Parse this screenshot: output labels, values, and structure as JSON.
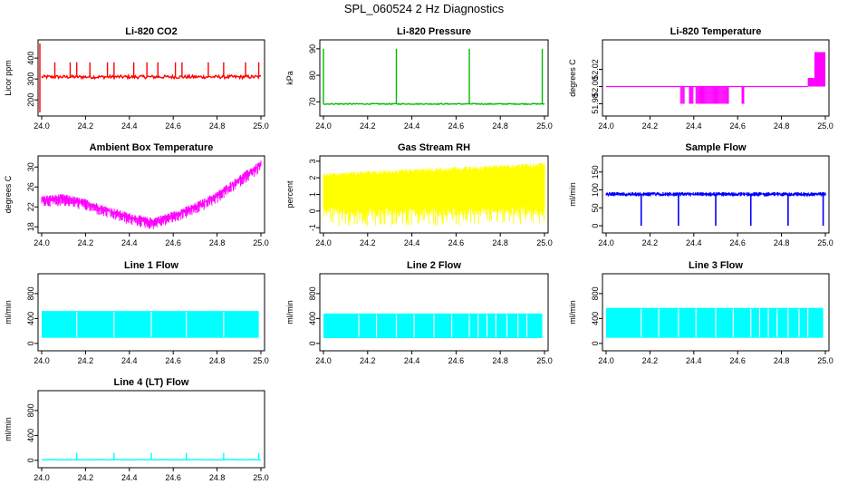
{
  "page": {
    "title": "SPL_060524  2 Hz Diagnostics"
  },
  "chart_data": [
    {
      "id": "co2",
      "type": "line",
      "title": "Li-820 CO2",
      "ylabel": "Licor ppm",
      "color": "#ff0000",
      "xlim": [
        24.0,
        25.0
      ],
      "ylim": [
        140,
        470
      ],
      "xticks": [
        24.0,
        24.2,
        24.4,
        24.6,
        24.8,
        25.0
      ],
      "xtick_labels": [
        "24.0",
        "24.2",
        "24.4",
        "24.6",
        "24.8",
        "25.0"
      ],
      "yticks": [
        200,
        300,
        400
      ],
      "ytick_labels": [
        "200",
        "300",
        "400"
      ],
      "pattern": "spikes",
      "baseline": 310,
      "noise": 8,
      "spike_value": 380,
      "spike_x": [
        24.06,
        24.13,
        24.16,
        24.22,
        24.3,
        24.33,
        24.42,
        24.48,
        24.53,
        24.61,
        24.64,
        24.76,
        24.83,
        24.93,
        24.99
      ]
    },
    {
      "id": "pressure",
      "type": "line",
      "title": "Li-820 Pressure",
      "ylabel": "kPa",
      "color": "#00bb00",
      "xlim": [
        24.0,
        25.0
      ],
      "ylim": [
        66,
        92
      ],
      "xticks": [
        24.0,
        24.2,
        24.4,
        24.6,
        24.8,
        25.0
      ],
      "xtick_labels": [
        "24.0",
        "24.2",
        "24.4",
        "24.6",
        "24.8",
        "25.0"
      ],
      "yticks": [
        70,
        80,
        90
      ],
      "ytick_labels": [
        "70",
        "80",
        "90"
      ],
      "pattern": "spikes",
      "baseline": 69.2,
      "noise": 0.2,
      "spike_value": 90,
      "spike_x": [
        24.0,
        24.33,
        24.66,
        24.99
      ]
    },
    {
      "id": "temp",
      "type": "line",
      "title": "Li-820 Temperature",
      "ylabel": "degrees C",
      "color": "#ff00ff",
      "xlim": [
        24.0,
        25.0
      ],
      "ylim": [
        51.97,
        52.05
      ],
      "xticks": [
        24.0,
        24.2,
        24.4,
        24.6,
        24.8,
        25.0
      ],
      "xtick_labels": [
        "24.0",
        "24.2",
        "24.4",
        "24.6",
        "24.8",
        "25.0"
      ],
      "yticks": [
        51.98,
        52.0,
        52.02
      ],
      "ytick_labels": [
        "51.98",
        "52.00",
        "52.02"
      ],
      "pattern": "steps",
      "baseline": 52.0,
      "low_value": 51.98,
      "blocks": [
        [
          24.34,
          24.36
        ],
        [
          24.38,
          24.4
        ],
        [
          24.41,
          24.56
        ],
        [
          24.62,
          24.63
        ]
      ],
      "high_blocks": [
        [
          24.92,
          24.95,
          52.01
        ],
        [
          24.95,
          25.0,
          52.04
        ]
      ]
    },
    {
      "id": "ambient",
      "type": "line",
      "title": "Ambient Box Temperature",
      "ylabel": "degrees C",
      "color": "#ff00ff",
      "xlim": [
        24.0,
        25.0
      ],
      "ylim": [
        17.5,
        31.5
      ],
      "xticks": [
        24.0,
        24.2,
        24.4,
        24.6,
        24.8,
        25.0
      ],
      "xtick_labels": [
        "24.0",
        "24.2",
        "24.4",
        "24.6",
        "24.8",
        "25.0"
      ],
      "yticks": [
        18,
        22,
        26,
        30
      ],
      "ytick_labels": [
        "18",
        "22",
        "26",
        "30"
      ],
      "pattern": "curve",
      "curve_x": [
        24.0,
        24.1,
        24.2,
        24.3,
        24.4,
        24.5,
        24.6,
        24.7,
        24.8,
        24.9,
        25.0
      ],
      "curve_y": [
        23.5,
        23.8,
        22.8,
        21.3,
        20.0,
        19.0,
        20.3,
        22.0,
        24.3,
        27.5,
        30.5
      ],
      "band": 1.6
    },
    {
      "id": "rh",
      "type": "area",
      "title": "Gas Stream RH",
      "ylabel": "percent",
      "color": "#ffff00",
      "xlim": [
        24.0,
        25.0
      ],
      "ylim": [
        -1.1,
        3.1
      ],
      "xticks": [
        24.0,
        24.2,
        24.4,
        24.6,
        24.8,
        25.0
      ],
      "xtick_labels": [
        "24.0",
        "24.2",
        "24.4",
        "24.6",
        "24.8",
        "25.0"
      ],
      "yticks": [
        -1,
        0,
        1,
        2,
        3
      ],
      "ytick_labels": [
        "-1",
        "0",
        "1",
        "2",
        "3"
      ],
      "pattern": "noise",
      "top_start": 2.3,
      "top_end": 2.9,
      "bottom": -0.3,
      "dip": -0.9
    },
    {
      "id": "sample",
      "type": "line",
      "title": "Sample Flow",
      "ylabel": "ml/min",
      "color": "#0000ff",
      "xlim": [
        24.0,
        25.0
      ],
      "ylim": [
        -10,
        185
      ],
      "xticks": [
        24.0,
        24.2,
        24.4,
        24.6,
        24.8,
        25.0
      ],
      "xtick_labels": [
        "24.0",
        "24.2",
        "24.4",
        "24.6",
        "24.8",
        "25.0"
      ],
      "yticks": [
        0,
        50,
        100,
        150
      ],
      "ytick_labels": [
        "0",
        "50",
        "100",
        "150"
      ],
      "pattern": "dips",
      "baseline": 88,
      "noise": 3,
      "dip_value": 0,
      "dip_x": [
        24.16,
        24.33,
        24.5,
        24.66,
        24.83,
        24.99
      ]
    },
    {
      "id": "line1",
      "type": "area",
      "title": "Line 1 Flow",
      "ylabel": "ml/min",
      "color": "#00ffff",
      "xlim": [
        24.0,
        25.0
      ],
      "ylim": [
        -60,
        1060
      ],
      "xticks": [
        24.0,
        24.2,
        24.4,
        24.6,
        24.8,
        25.0
      ],
      "xtick_labels": [
        "24.0",
        "24.2",
        "24.4",
        "24.6",
        "24.8",
        "25.0"
      ],
      "yticks": [
        0,
        400,
        800
      ],
      "ytick_labels": [
        "0",
        "400",
        "800"
      ],
      "pattern": "block",
      "top": 520,
      "bottom": 90,
      "gap_x": [
        24.16,
        24.33,
        24.5,
        24.66,
        24.83
      ]
    },
    {
      "id": "line2",
      "type": "area",
      "title": "Line 2 Flow",
      "ylabel": "ml/min",
      "color": "#00ffff",
      "xlim": [
        24.0,
        25.0
      ],
      "ylim": [
        -60,
        1060
      ],
      "xticks": [
        24.0,
        24.2,
        24.4,
        24.6,
        24.8,
        25.0
      ],
      "xtick_labels": [
        "24.0",
        "24.2",
        "24.4",
        "24.6",
        "24.8",
        "25.0"
      ],
      "yticks": [
        0,
        400,
        800
      ],
      "ytick_labels": [
        "0",
        "400",
        "800"
      ],
      "pattern": "block",
      "top": 480,
      "bottom": 85,
      "gap_x": [
        24.16,
        24.24,
        24.33,
        24.41,
        24.5,
        24.58,
        24.66,
        24.7,
        24.74,
        24.78,
        24.83,
        24.88,
        24.92
      ]
    },
    {
      "id": "line3",
      "type": "area",
      "title": "Line 3 Flow",
      "ylabel": "ml/min",
      "color": "#00ffff",
      "xlim": [
        24.0,
        25.0
      ],
      "ylim": [
        -60,
        1060
      ],
      "xticks": [
        24.0,
        24.2,
        24.4,
        24.6,
        24.8,
        25.0
      ],
      "xtick_labels": [
        "24.0",
        "24.2",
        "24.4",
        "24.6",
        "24.8",
        "25.0"
      ],
      "yticks": [
        0,
        400,
        800
      ],
      "ytick_labels": [
        "0",
        "400",
        "800"
      ],
      "pattern": "block",
      "top": 570,
      "bottom": 90,
      "gap_x": [
        24.16,
        24.24,
        24.33,
        24.41,
        24.5,
        24.58,
        24.66,
        24.7,
        24.74,
        24.78,
        24.83,
        24.88,
        24.92
      ]
    },
    {
      "id": "line4",
      "type": "line",
      "title": "Line 4 (LT) Flow",
      "ylabel": "ml/min",
      "color": "#00ffff",
      "xlim": [
        24.0,
        25.0
      ],
      "ylim": [
        -60,
        1060
      ],
      "xticks": [
        24.0,
        24.2,
        24.4,
        24.6,
        24.8,
        25.0
      ],
      "xtick_labels": [
        "24.0",
        "24.2",
        "24.4",
        "24.6",
        "24.8",
        "25.0"
      ],
      "yticks": [
        0,
        400,
        800
      ],
      "ytick_labels": [
        "0",
        "400",
        "800"
      ],
      "pattern": "spikes",
      "baseline": 10,
      "noise": 3,
      "spike_value": 120,
      "spike_x": [
        24.16,
        24.33,
        24.5,
        24.66,
        24.83,
        24.99
      ]
    }
  ]
}
